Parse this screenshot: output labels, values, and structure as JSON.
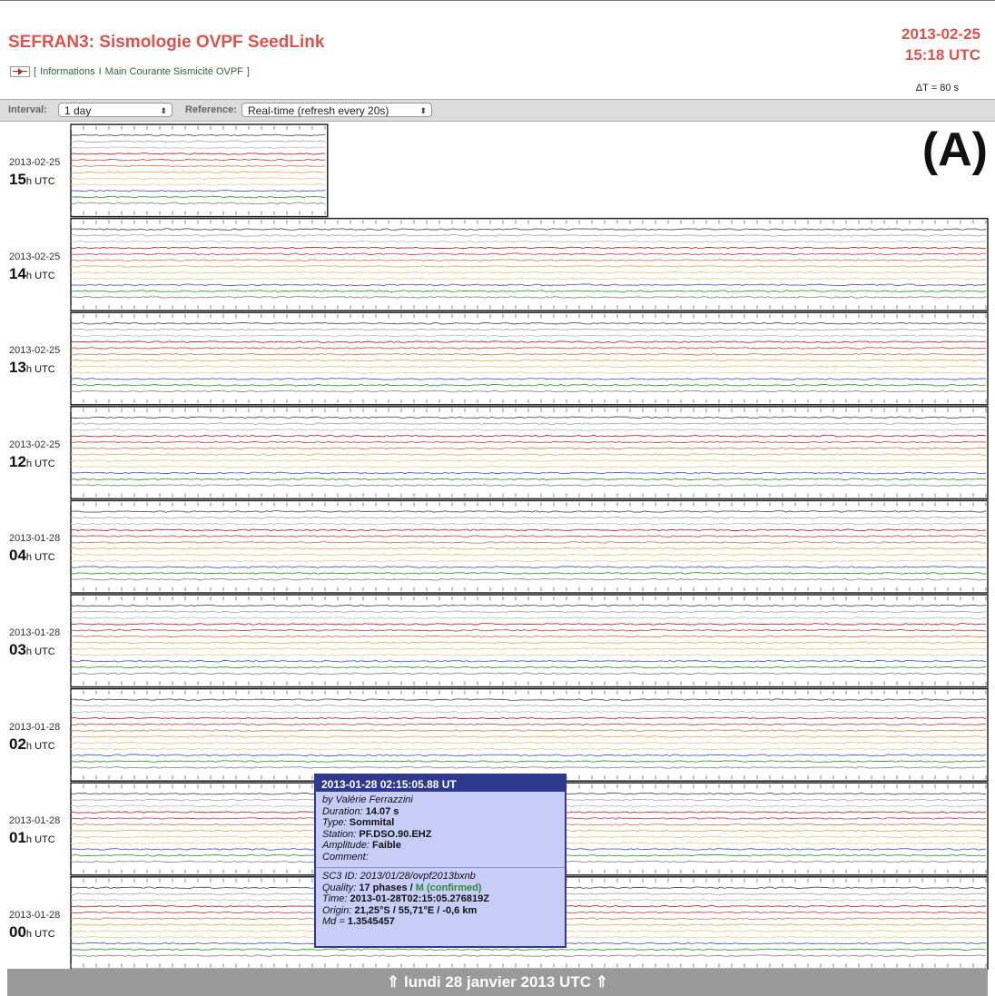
{
  "header": {
    "title": "SEFRAN3: Sismologie OVPF SeedLink",
    "date": "2013-02-25",
    "time": "15:18 UTC",
    "links_open": "[",
    "link_informations": "Informations",
    "link_separator": "I",
    "link_main_courante": "Main Courante Sismicité OVPF",
    "links_close": "]",
    "delta_t": "ΔT = 80 s"
  },
  "toolbar": {
    "interval_label": "Interval:",
    "interval_value": "1 day",
    "reference_label": "Reference:",
    "reference_value": "Real-time (refresh every 20s)"
  },
  "panel_label": "(A)",
  "rows": [
    {
      "date": "2013-02-25",
      "hour": "15",
      "unit": "h UTC",
      "fill": 0.28
    },
    {
      "date": "2013-02-25",
      "hour": "14",
      "unit": "h UTC",
      "fill": 1
    },
    {
      "date": "2013-02-25",
      "hour": "13",
      "unit": "h UTC",
      "fill": 1
    },
    {
      "date": "2013-02-25",
      "hour": "12",
      "unit": "h UTC",
      "fill": 1
    },
    {
      "date": "2013-01-28",
      "hour": "04",
      "unit": "h UTC",
      "fill": 1
    },
    {
      "date": "2013-01-28",
      "hour": "03",
      "unit": "h UTC",
      "fill": 1
    },
    {
      "date": "2013-01-28",
      "hour": "02",
      "unit": "h UTC",
      "fill": 1
    },
    {
      "date": "2013-01-28",
      "hour": "01",
      "unit": "h UTC",
      "fill": 1
    },
    {
      "date": "2013-01-28",
      "hour": "00",
      "unit": "h UTC",
      "fill": 1
    }
  ],
  "trace_colors": [
    "#555555",
    "#aaaaaa",
    "#c0c0c0",
    "#b03030",
    "#c05050",
    "#d08060",
    "#e0b060",
    "#e8c888",
    "#e8d0a0",
    "#4a60c8",
    "#3a9a3a",
    "#8a8a8a"
  ],
  "event_popup": {
    "header": "2013-01-28 02:15:05.88 UT",
    "by": "by Valérie Ferrazzini",
    "duration_label": "Duration:",
    "duration": "14.07 s",
    "type_label": "Type:",
    "type": "Sommital",
    "station_label": "Station:",
    "station": "PF.DSO.90.EHZ",
    "amplitude_label": "Amplitude:",
    "amplitude": "Faible",
    "comment_label": "Comment:",
    "sc3_label": "SC3 ID:",
    "sc3_id": "2013/01/28/ovpf2013bxnb",
    "quality_label": "Quality:",
    "quality": "17 phases /",
    "status": "M (confirmed)",
    "time_label": "Time:",
    "time": "2013-01-28T02:15:05.276819Z",
    "origin_label": "Origin:",
    "origin": "21,25°S / 55,71°E / -0,6 km",
    "md_label": "Md =",
    "md": "1.3545457"
  },
  "footer": "⇑ lundi 28 janvier 2013 UTC ⇑"
}
